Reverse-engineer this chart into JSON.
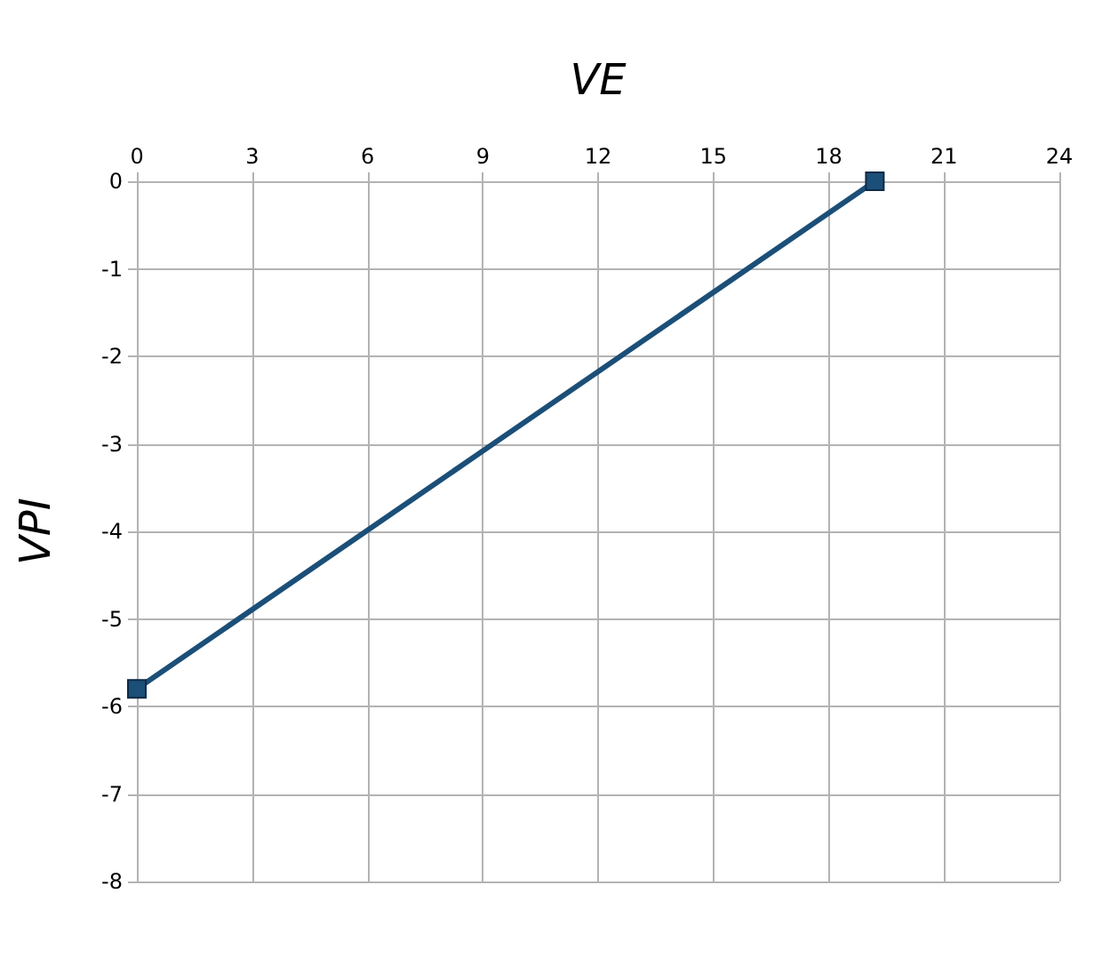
{
  "chart_data": {
    "type": "line",
    "xlabel": "VE",
    "ylabel": "VPI",
    "x": [
      0,
      19.2
    ],
    "series": [
      {
        "color": "#1b4f78",
        "values": [
          -5.8,
          0
        ]
      }
    ],
    "xlim": [
      0,
      24
    ],
    "xticks": [
      0,
      3,
      6,
      9,
      12,
      15,
      18,
      21,
      24
    ],
    "ylim": [
      -8,
      0
    ],
    "yticks": [
      -8,
      -7,
      -6,
      -5,
      -4,
      -3,
      -2,
      -1,
      0
    ],
    "grid": true,
    "marker": "square",
    "line_style": "solid"
  }
}
